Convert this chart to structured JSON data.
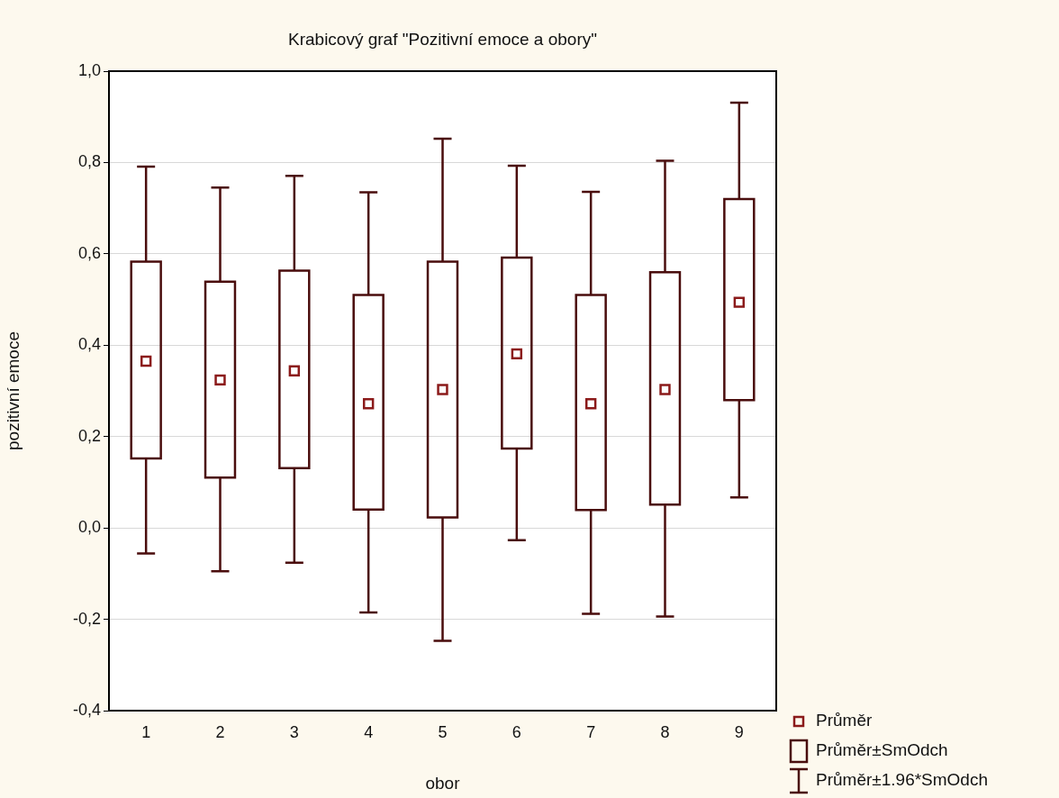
{
  "chart_data": {
    "type": "box",
    "title": "Krabicový graf \"Pozitivní emoce a obory\"",
    "xlabel": "obor",
    "ylabel": "pozitivní emoce",
    "categories": [
      "1",
      "2",
      "3",
      "4",
      "5",
      "6",
      "7",
      "8",
      "9"
    ],
    "ylim": [
      -0.4,
      1.0
    ],
    "yticks": [
      {
        "value": -0.4,
        "label": "-0,4"
      },
      {
        "value": -0.2,
        "label": "-0,2"
      },
      {
        "value": 0,
        "label": "0,0"
      },
      {
        "value": 0.2,
        "label": "0,2"
      },
      {
        "value": 0.4,
        "label": "0,4"
      },
      {
        "value": 0.6,
        "label": "0,6"
      },
      {
        "value": 0.8,
        "label": "0,8"
      },
      {
        "value": 1.0,
        "label": "1,0"
      }
    ],
    "grid": "y",
    "legend": "bottom right",
    "series": [
      {
        "name": "Průměr",
        "type": "scatter",
        "marker": "square",
        "color": "#8b1a1a",
        "x": [
          "1",
          "2",
          "3",
          "4",
          "5",
          "6",
          "7",
          "8",
          "9"
        ],
        "values": [
          0.365,
          0.324,
          0.344,
          0.272,
          0.303,
          0.381,
          0.272,
          0.303,
          0.494
        ]
      },
      {
        "name": "Průměr±SmOdch",
        "color": "#4a0d0d",
        "boxes": [
          {
            "low": -0.056,
            "q1": 0.152,
            "q3": 0.583,
            "high": 0.791
          },
          {
            "low": -0.095,
            "q1": 0.11,
            "q3": 0.539,
            "high": 0.745
          },
          {
            "low": -0.076,
            "q1": 0.131,
            "q3": 0.563,
            "high": 0.771
          },
          {
            "low": -0.185,
            "q1": 0.04,
            "q3": 0.51,
            "high": 0.735
          },
          {
            "low": -0.247,
            "q1": 0.023,
            "q3": 0.583,
            "high": 0.852
          },
          {
            "low": -0.027,
            "q1": 0.174,
            "q3": 0.592,
            "high": 0.793
          },
          {
            "low": -0.188,
            "q1": 0.039,
            "q3": 0.51,
            "high": 0.736
          },
          {
            "low": -0.194,
            "q1": 0.051,
            "q3": 0.56,
            "high": 0.804
          },
          {
            "low": 0.067,
            "q1": 0.28,
            "q3": 0.72,
            "high": 0.931
          }
        ]
      }
    ],
    "annotations": [
      "Průměr±1.96*SmOdch"
    ]
  }
}
